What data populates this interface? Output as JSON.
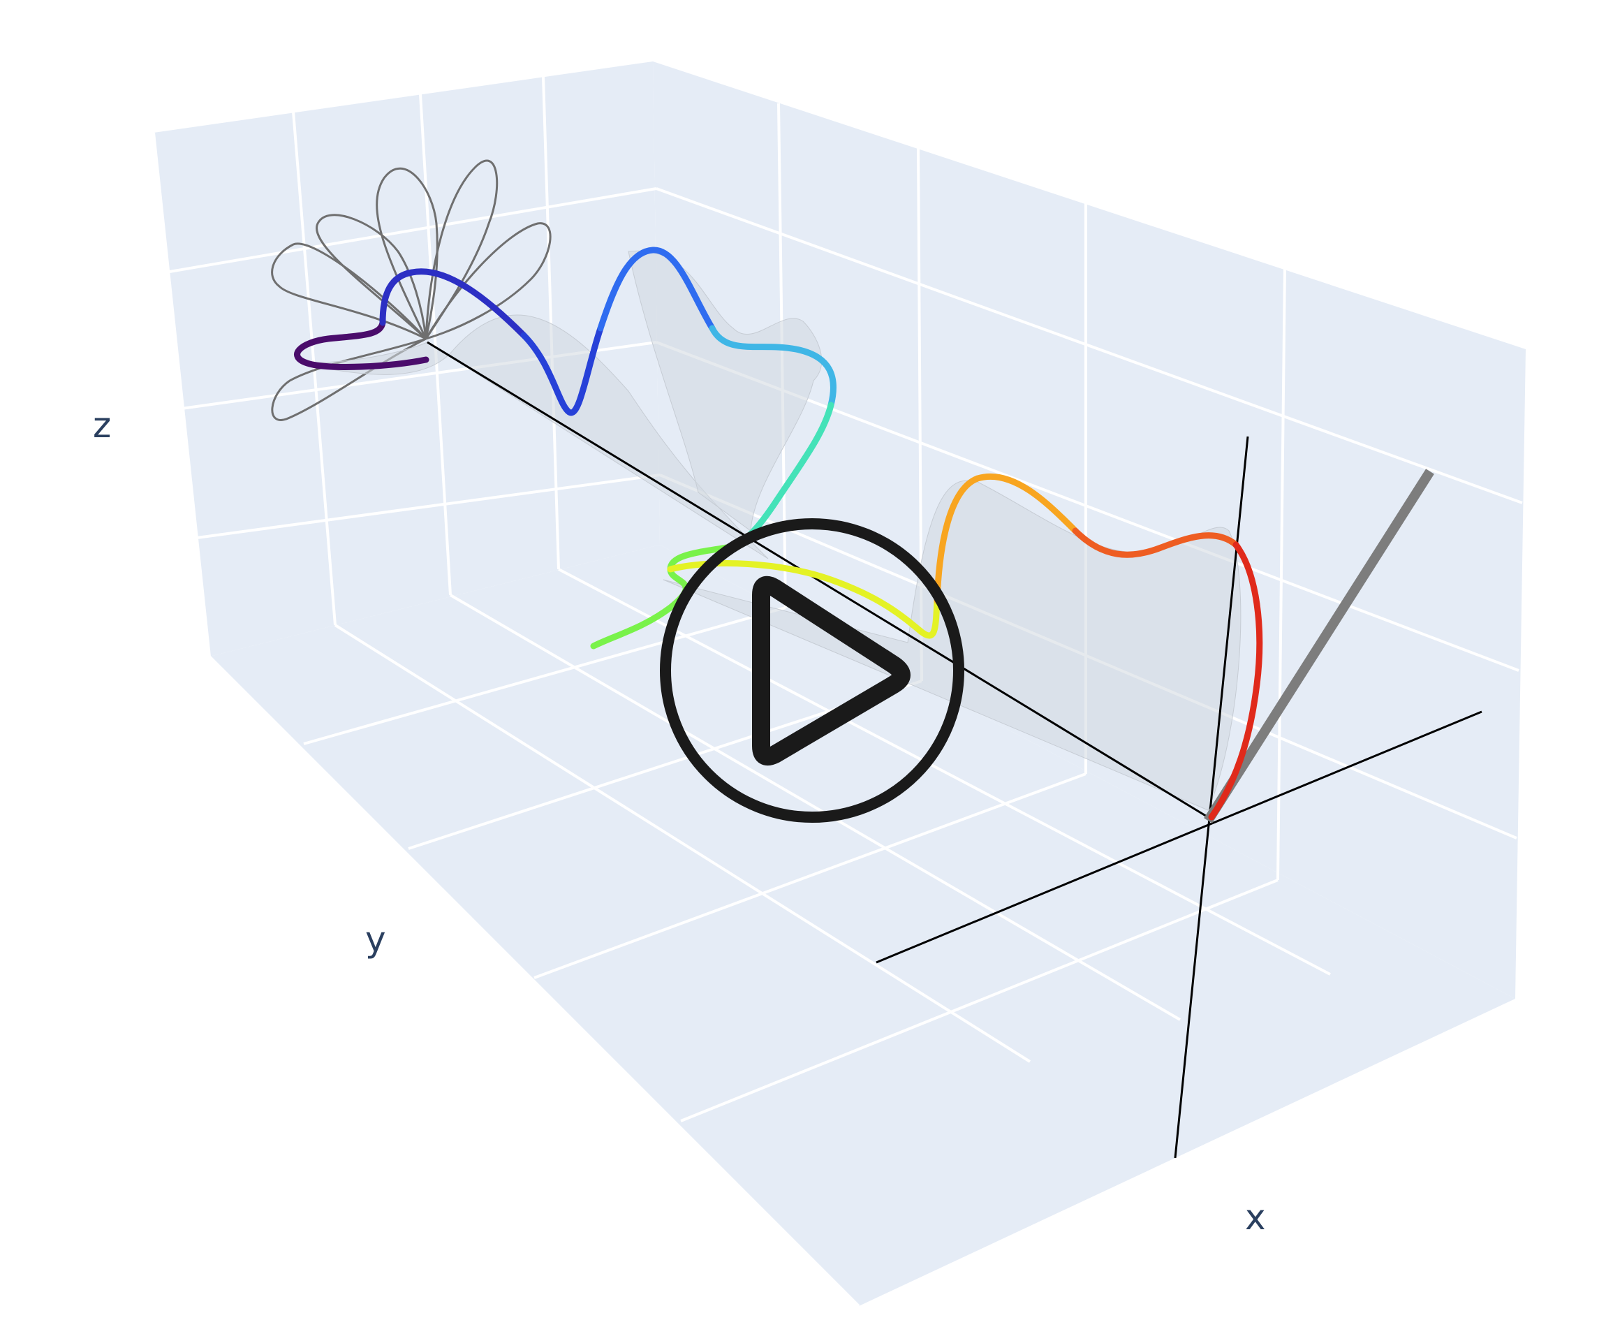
{
  "chart_data": {
    "type": "line",
    "title": "",
    "axes": {
      "x": {
        "label": "x"
      },
      "y": {
        "label": "y"
      },
      "z": {
        "label": "z"
      }
    },
    "grid": true,
    "legend": "none",
    "colorscale": [
      "#4a0c6b",
      "#2c2fc4",
      "#2f6cf0",
      "#3fb6e6",
      "#44e2b8",
      "#79f24a",
      "#e4f225",
      "#f8a520",
      "#ee5d22",
      "#e02a1b"
    ]
  },
  "controls": {
    "play_icon": "play-icon"
  },
  "colors": {
    "wall": "#e5ecf6",
    "gridline": "#ffffff",
    "axis_line": "#000000",
    "projection": "#6f6f6f",
    "vector": "#808080",
    "play": "#1a1a1a"
  }
}
